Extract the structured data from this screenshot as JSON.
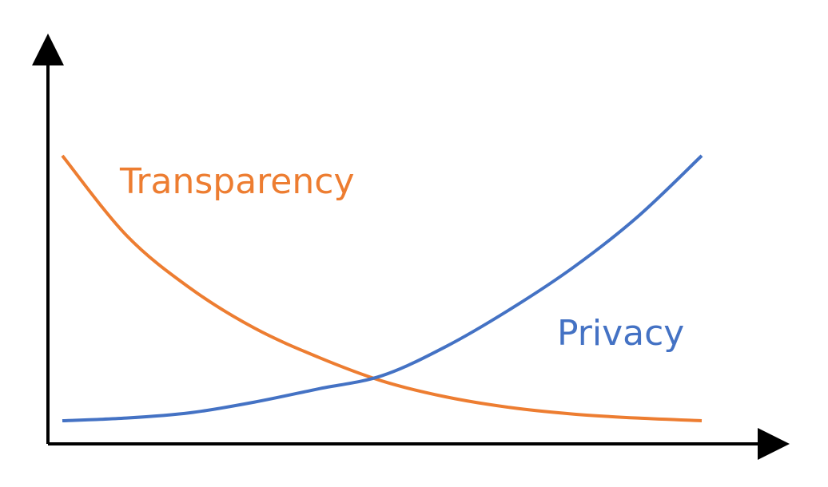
{
  "chart_data": {
    "type": "line",
    "title": "",
    "xlabel": "",
    "ylabel": "",
    "xlim": [
      0,
      1
    ],
    "ylim": [
      0,
      1
    ],
    "grid": false,
    "legend": "inline-labels",
    "series": [
      {
        "name": "Transparency",
        "color": "#ED7D31",
        "x": [
          0,
          0.1,
          0.2,
          0.3,
          0.4,
          0.5,
          0.6,
          0.7,
          0.8,
          0.9,
          1.0
        ],
        "y": [
          1.0,
          0.7,
          0.5,
          0.35,
          0.24,
          0.15,
          0.09,
          0.05,
          0.025,
          0.01,
          0.0
        ]
      },
      {
        "name": "Privacy",
        "color": "#4472C4",
        "x": [
          0,
          0.1,
          0.2,
          0.3,
          0.4,
          0.5,
          0.6,
          0.7,
          0.8,
          0.9,
          1.0
        ],
        "y": [
          0.0,
          0.01,
          0.03,
          0.07,
          0.12,
          0.17,
          0.28,
          0.42,
          0.58,
          0.77,
          1.0
        ]
      }
    ],
    "axes_color": "#000000"
  }
}
